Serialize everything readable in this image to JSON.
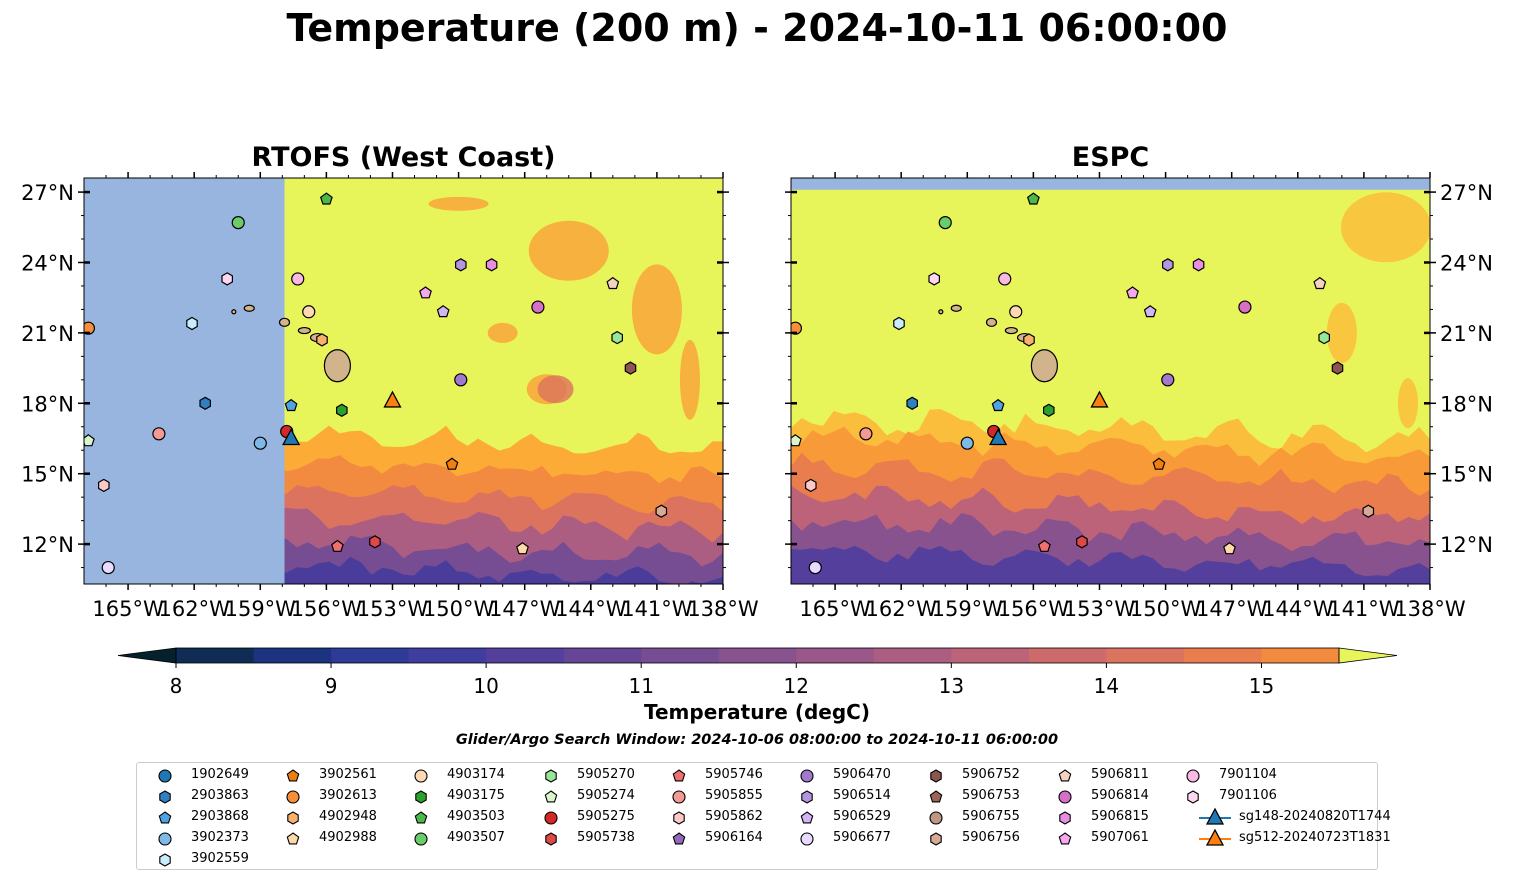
{
  "figure_title": "Temperature (200 m) - 2024-10-11 06:00:00",
  "search_window": "Glider/Argo Search Window: 2024-10-06 08:00:00 to 2024-10-11 06:00:00",
  "colorbar": {
    "label": "Temperature (degC)",
    "min": 7.6,
    "max": 15.6,
    "ticks": [
      "8",
      "9",
      "10",
      "11",
      "12",
      "13",
      "14",
      "15"
    ],
    "tick_values": [
      8,
      9,
      10,
      11,
      12,
      13,
      14,
      15
    ],
    "colors": [
      "#06212e",
      "#0f2d54",
      "#1b3380",
      "#2d3a96",
      "#3f3d9d",
      "#543f9c",
      "#664596",
      "#764c92",
      "#87528e",
      "#995889",
      "#ab5e82",
      "#bd6379",
      "#cd6b6c",
      "#dc735e",
      "#e97d4e",
      "#f28a40",
      "#f89a37",
      "#fbab36",
      "#fbbd3c",
      "#f8d246",
      "#e8f55a"
    ]
  },
  "chart_data": [
    {
      "type": "heatmap",
      "title": "RTOFS (West Coast)",
      "lon_range": [
        -167,
        -138
      ],
      "lat_range": [
        10.3,
        27.6
      ],
      "x_ticks": [
        "165°W",
        "162°W",
        "159°W",
        "156°W",
        "153°W",
        "150°W",
        "147°W",
        "144°W",
        "141°W",
        "138°W"
      ],
      "y_ticks": [
        "27°N",
        "24°N",
        "21°N",
        "18°N",
        "15°N",
        "12°N"
      ],
      "y_tick_values": [
        27,
        24,
        21,
        18,
        15,
        12
      ],
      "no_data_west_of_lon": -157.9,
      "colors": {
        "warm": "#e8f55a",
        "orange": "#f89a37",
        "red": "#cd6b6c",
        "purple": "#5a3f98",
        "land": "#d2b48c",
        "nodata": "#97b5df"
      }
    },
    {
      "type": "heatmap",
      "title": "ESPC",
      "lon_range": [
        -167,
        -138
      ],
      "lat_range": [
        10.3,
        27.6
      ],
      "x_ticks": [
        "165°W",
        "162°W",
        "159°W",
        "156°W",
        "153°W",
        "150°W",
        "147°W",
        "144°W",
        "141°W",
        "138°W"
      ],
      "y_ticks": [
        "27°N",
        "24°N",
        "21°N",
        "18°N",
        "15°N",
        "12°N"
      ],
      "y_tick_values": [
        27,
        24,
        21,
        18,
        15,
        12
      ],
      "no_data_north_of_lat": 27.1
    }
  ],
  "floats": [
    {
      "id": "1902649",
      "marker": "circle",
      "color": "#1f77b4",
      "lon": null,
      "lat": null
    },
    {
      "id": "2903863",
      "marker": "hexagon",
      "color": "#2f7fc1",
      "lon": -161.5,
      "lat": 18.0
    },
    {
      "id": "2903868",
      "marker": "pentagon",
      "color": "#4fa3e0",
      "lon": -157.6,
      "lat": 17.9
    },
    {
      "id": "3902373",
      "marker": "circle",
      "color": "#7fb9e6",
      "lon": -159.0,
      "lat": 16.3
    },
    {
      "id": "3902559",
      "marker": "hexagon",
      "color": "#c9ecff",
      "lon": -162.1,
      "lat": 21.4
    },
    {
      "id": "3902561",
      "marker": "pentagon",
      "color": "#f07f12",
      "lon": -150.3,
      "lat": 15.4
    },
    {
      "id": "3902613",
      "marker": "circle",
      "color": "#f88e38",
      "lon": -166.8,
      "lat": 21.2
    },
    {
      "id": "4902948",
      "marker": "hexagon",
      "color": "#f9b26e",
      "lon": -156.2,
      "lat": 20.7
    },
    {
      "id": "4902988",
      "marker": "pentagon",
      "color": "#fcd9a8",
      "lon": -147.1,
      "lat": 11.8
    },
    {
      "id": "4903174",
      "marker": "circle",
      "color": "#ffd8b5",
      "lon": -156.8,
      "lat": 21.9
    },
    {
      "id": "4903175",
      "marker": "hexagon",
      "color": "#2ca02c",
      "lon": -155.3,
      "lat": 17.7
    },
    {
      "id": "4903503",
      "marker": "pentagon",
      "color": "#4cb84c",
      "lon": -156.0,
      "lat": 26.7
    },
    {
      "id": "4903507",
      "marker": "circle",
      "color": "#6bcc6b",
      "lon": -160.0,
      "lat": 25.7
    },
    {
      "id": "5905270",
      "marker": "hexagon",
      "color": "#98e698",
      "lon": -142.8,
      "lat": 20.8
    },
    {
      "id": "5905274",
      "marker": "pentagon",
      "color": "#d8f5cc",
      "lon": -166.8,
      "lat": 16.4
    },
    {
      "id": "5905275",
      "marker": "circle",
      "color": "#d62728",
      "lon": -157.8,
      "lat": 16.8
    },
    {
      "id": "5905738",
      "marker": "hexagon",
      "color": "#e04848",
      "lon": -153.8,
      "lat": 12.1
    },
    {
      "id": "5905746",
      "marker": "pentagon",
      "color": "#f07070",
      "lon": -155.5,
      "lat": 11.9
    },
    {
      "id": "5905855",
      "marker": "circle",
      "color": "#f29a93",
      "lon": -163.6,
      "lat": 16.7
    },
    {
      "id": "5905862",
      "marker": "hexagon",
      "color": "#fcc8c8",
      "lon": -166.1,
      "lat": 14.5
    },
    {
      "id": "5906164",
      "marker": "pentagon",
      "color": "#9467bd",
      "lon": null,
      "lat": null
    },
    {
      "id": "5906470",
      "marker": "circle",
      "color": "#a17ad0",
      "lon": -149.9,
      "lat": 19.0
    },
    {
      "id": "5906514",
      "marker": "hexagon",
      "color": "#b495e0",
      "lon": -149.9,
      "lat": 23.9
    },
    {
      "id": "5906529",
      "marker": "pentagon",
      "color": "#d2b5f5",
      "lon": -150.7,
      "lat": 21.9
    },
    {
      "id": "5906677",
      "marker": "circle",
      "color": "#e8dbff",
      "lon": -165.9,
      "lat": 11.0
    },
    {
      "id": "5906752",
      "marker": "hexagon",
      "color": "#8c564b",
      "lon": -142.2,
      "lat": 19.5
    },
    {
      "id": "5906753",
      "marker": "pentagon",
      "color": "#9b6658",
      "lon": null,
      "lat": null
    },
    {
      "id": "5906755",
      "marker": "circle",
      "color": "#c09784",
      "lon": null,
      "lat": null
    },
    {
      "id": "5906756",
      "marker": "hexagon",
      "color": "#d8aa95",
      "lon": -140.8,
      "lat": 13.4
    },
    {
      "id": "5906811",
      "marker": "pentagon",
      "color": "#f5d3c3",
      "lon": -143.0,
      "lat": 23.1
    },
    {
      "id": "5906814",
      "marker": "circle",
      "color": "#d66fc6",
      "lon": -146.4,
      "lat": 22.1
    },
    {
      "id": "5906815",
      "marker": "hexagon",
      "color": "#e78de2",
      "lon": -148.5,
      "lat": 23.9
    },
    {
      "id": "5907061",
      "marker": "pentagon",
      "color": "#f5a8ec",
      "lon": -151.5,
      "lat": 22.7
    },
    {
      "id": "7901104",
      "marker": "circle",
      "color": "#f9b9e2",
      "lon": -157.3,
      "lat": 23.3
    },
    {
      "id": "7901106",
      "marker": "hexagon",
      "color": "#fdd8f0",
      "lon": -160.5,
      "lat": 23.3
    }
  ],
  "gliders": [
    {
      "id": "sg148-20240820T1744",
      "color": "#1f77b4",
      "lon": -157.6,
      "lat": 16.5
    },
    {
      "id": "sg512-20240723T1831",
      "color": "#ff7f0e",
      "lon": -153.0,
      "lat": 18.1
    }
  ]
}
